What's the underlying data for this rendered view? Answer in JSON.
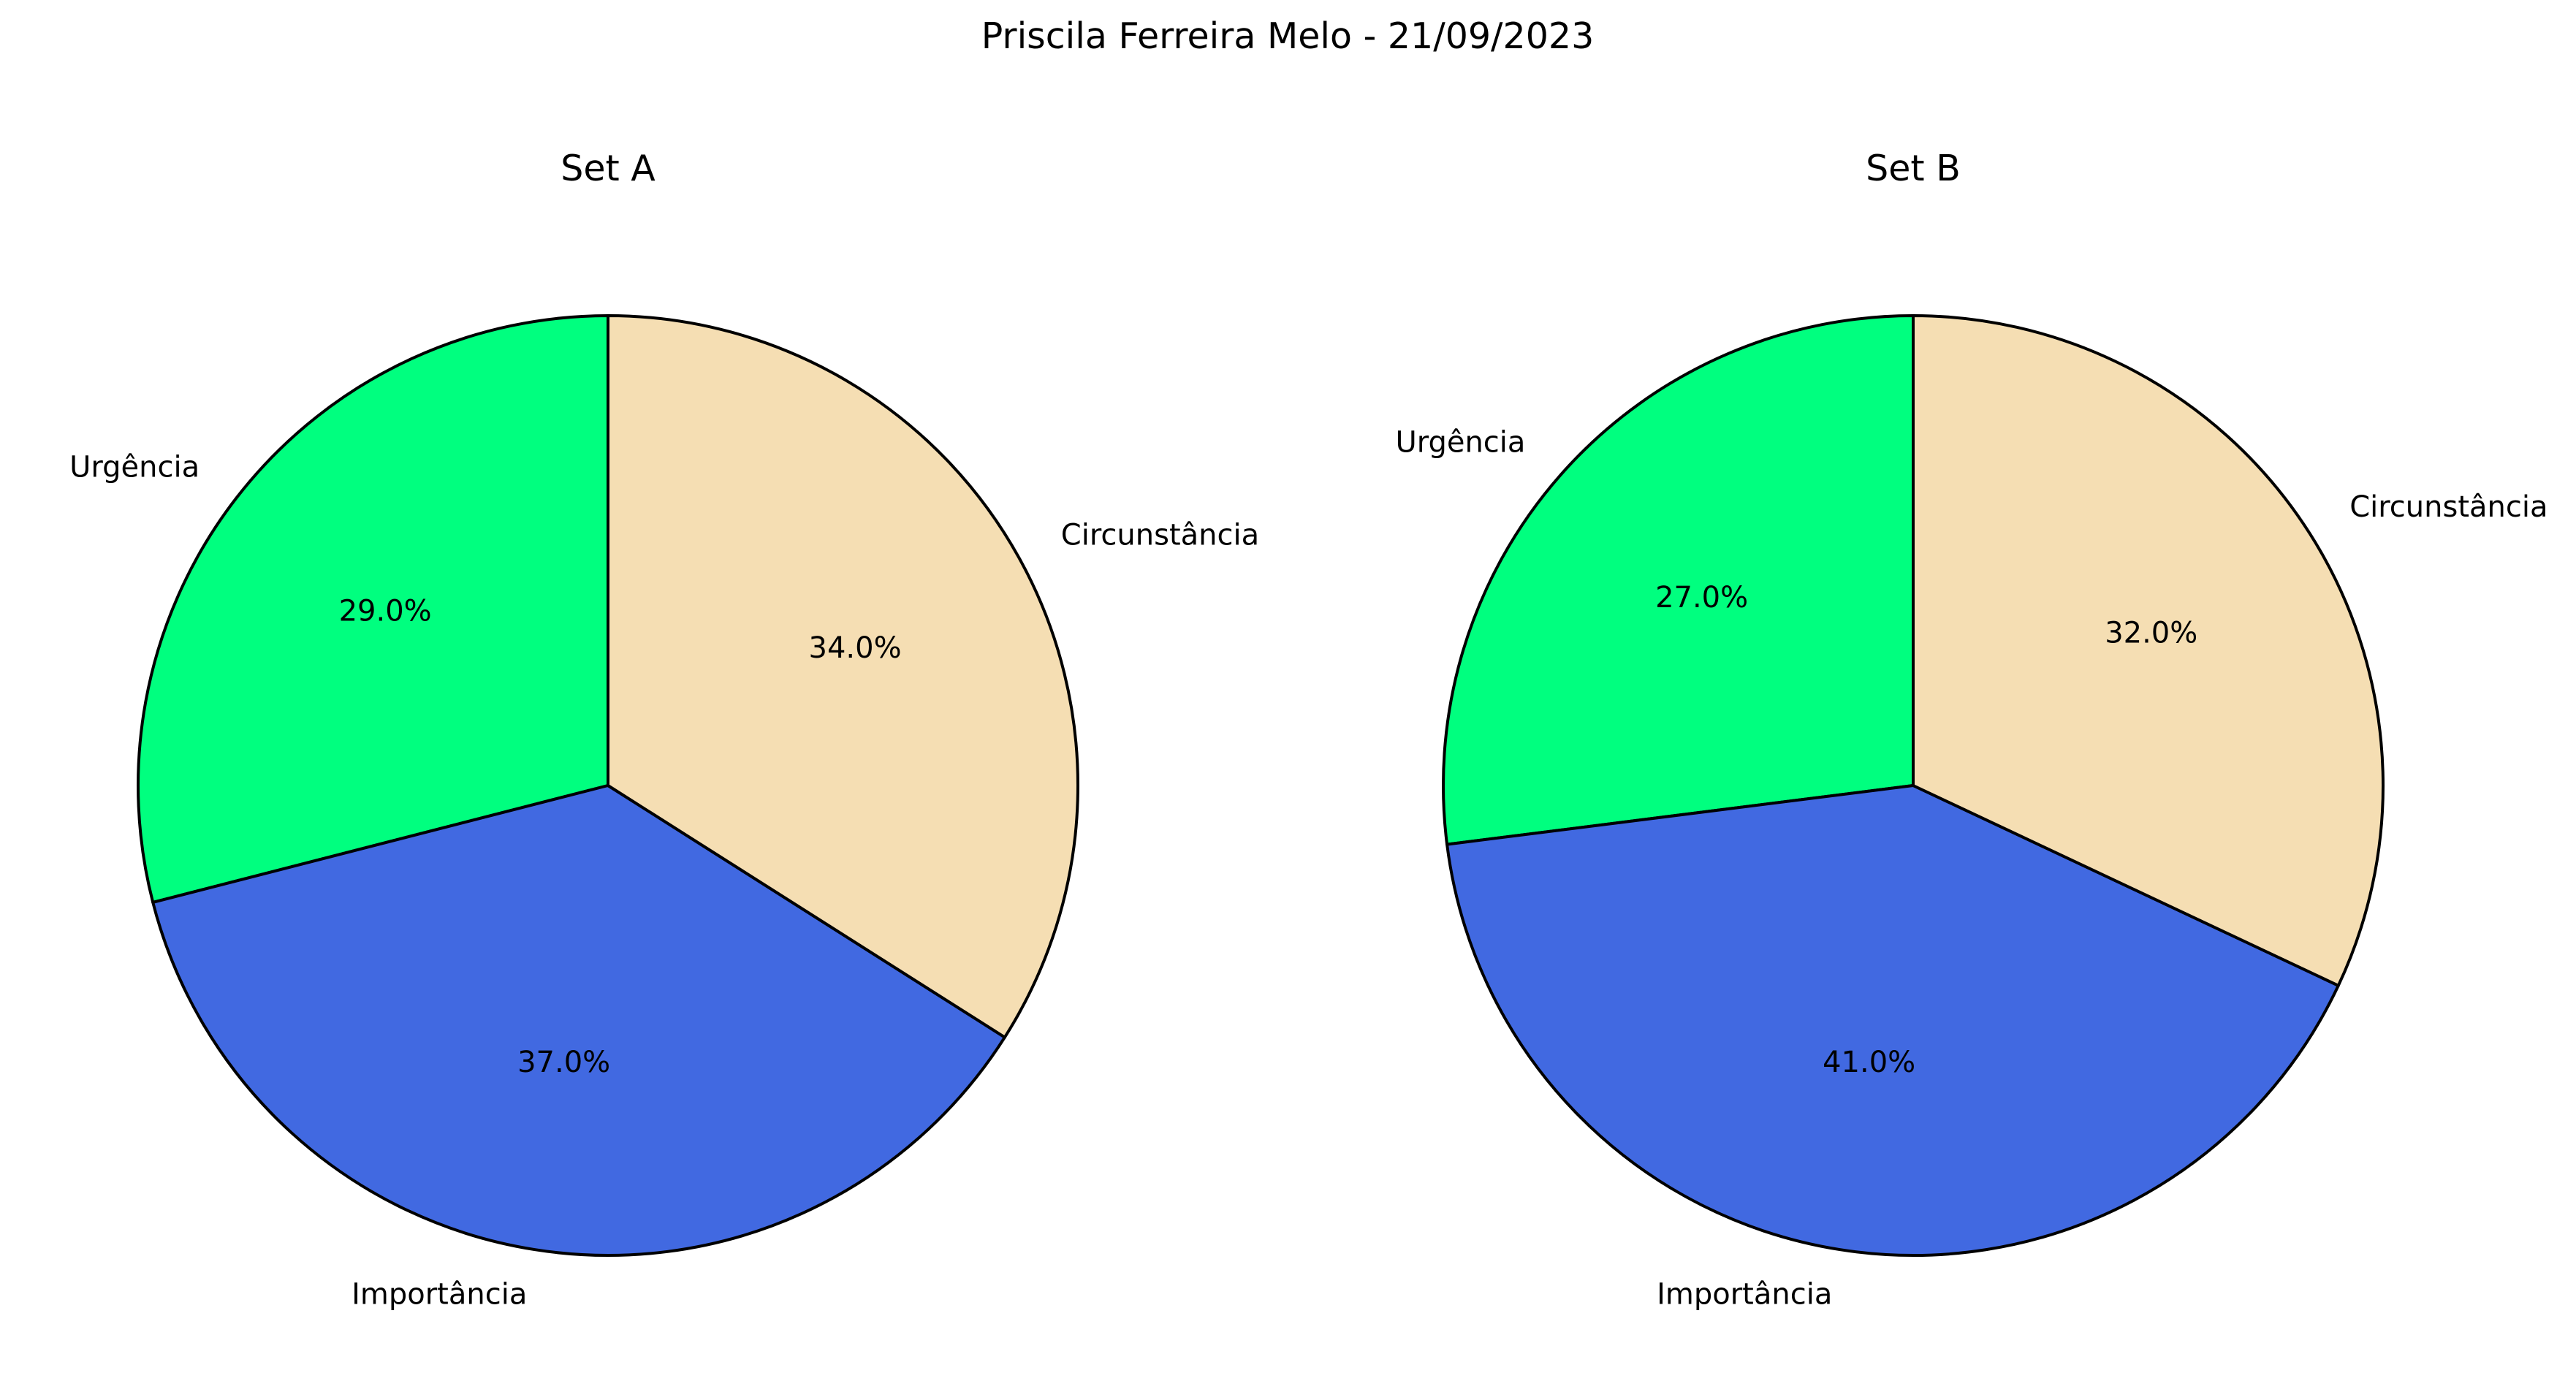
{
  "title": "Priscila Ferreira Melo - 21/09/2023",
  "chart_data": [
    {
      "type": "pie",
      "title": "Set A",
      "categories": [
        "Urgência",
        "Importância",
        "Circunstância"
      ],
      "values": [
        29.0,
        37.0,
        34.0
      ],
      "value_labels": [
        "29.0%",
        "37.0%",
        "34.0%"
      ],
      "colors": [
        "#00ff7f",
        "#4169e1",
        "#f5deb3"
      ],
      "start_angle_deg": 90,
      "direction": "counterclockwise"
    },
    {
      "type": "pie",
      "title": "Set B",
      "categories": [
        "Urgência",
        "Importância",
        "Circunstância"
      ],
      "values": [
        27.0,
        41.0,
        32.0
      ],
      "value_labels": [
        "27.0%",
        "41.0%",
        "32.0%"
      ],
      "colors": [
        "#00ff7f",
        "#4169e1",
        "#f5deb3"
      ],
      "start_angle_deg": 90,
      "direction": "counterclockwise"
    }
  ]
}
